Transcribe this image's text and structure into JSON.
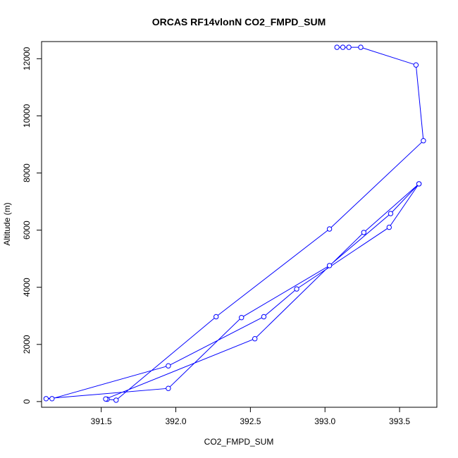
{
  "chart_data": {
    "type": "line",
    "title": "ORCAS RF14vlonN CO2_FMPD_SUM",
    "xlabel": "CO2_FMPD_SUM",
    "ylabel": "Altitude (m)",
    "xlim": [
      391.1,
      393.75
    ],
    "ylim": [
      -200,
      12600
    ],
    "xticks": [
      391.5,
      392.0,
      392.5,
      393.0,
      393.5
    ],
    "xtick_labels": [
      "391.5",
      "392.0",
      "392.5",
      "393.0",
      "393.5"
    ],
    "yticks": [
      0,
      2000,
      4000,
      6000,
      8000,
      10000,
      12000
    ],
    "ytick_labels": [
      "0",
      "2000",
      "4000",
      "6000",
      "8000",
      "10000",
      "12000"
    ],
    "grid": false,
    "color": "#0000ff",
    "series": [
      {
        "x": [
          393.08,
          393.12,
          393.16,
          393.24,
          393.61,
          393.66,
          393.03,
          392.27,
          391.6,
          391.54,
          391.53,
          392.53,
          393.26,
          393.63,
          393.43,
          392.81,
          392.59,
          391.95,
          391.17,
          391.13,
          391.95,
          392.44,
          393.03,
          393.44,
          393.63
        ],
        "y": [
          12400,
          12400,
          12400,
          12400,
          11780,
          9130,
          6040,
          2970,
          50,
          80,
          90,
          2200,
          5920,
          7620,
          6100,
          3940,
          2970,
          1250,
          100,
          100,
          460,
          2940,
          4760,
          6580,
          7620
        ]
      }
    ]
  }
}
